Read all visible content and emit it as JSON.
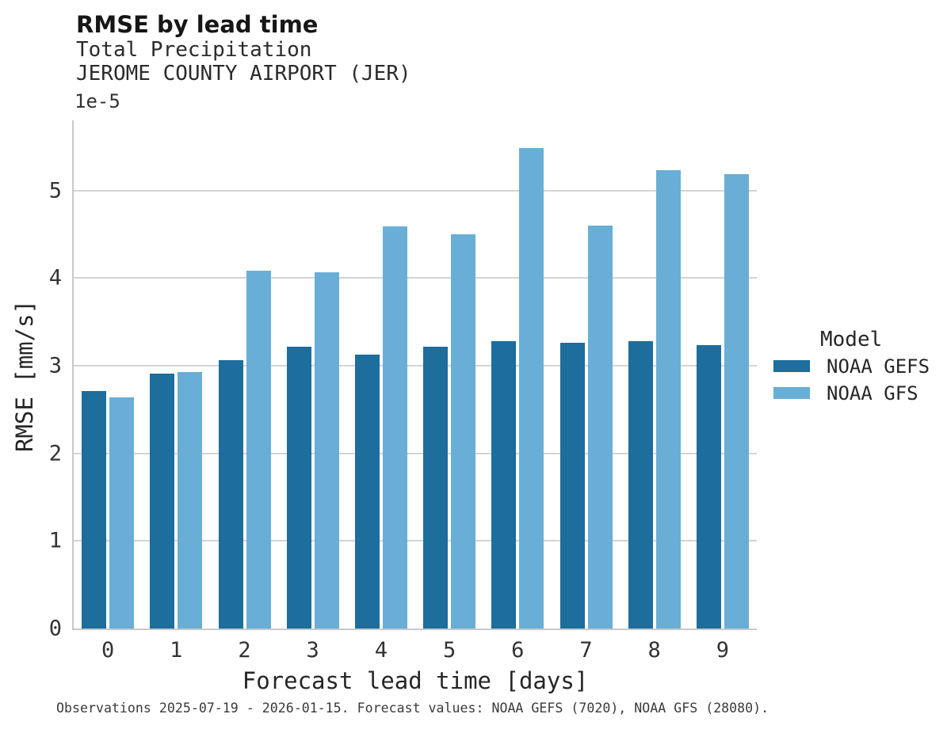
{
  "header": {
    "title": "RMSE by lead time",
    "subtitle1": "Total Precipitation",
    "subtitle2": "JEROME COUNTY AIRPORT (JER)"
  },
  "footer": {
    "note": "Observations 2025-07-19 - 2026-01-15. Forecast values: NOAA GEFS (7020), NOAA GFS (28080)."
  },
  "chart_data": {
    "type": "bar",
    "title": "RMSE by lead time",
    "subtitle": [
      "Total Precipitation",
      "JEROME COUNTY AIRPORT (JER)"
    ],
    "categories": [
      0,
      1,
      2,
      3,
      4,
      5,
      6,
      7,
      8,
      9
    ],
    "series": [
      {
        "name": "NOAA GEFS",
        "color": "#1d6d9d",
        "values": [
          2.71e-05,
          2.91e-05,
          3.06e-05,
          3.22e-05,
          3.13e-05,
          3.22e-05,
          3.28e-05,
          3.26e-05,
          3.28e-05,
          3.23e-05
        ]
      },
      {
        "name": "NOAA GFS",
        "color": "#69aed6",
        "values": [
          2.64e-05,
          2.93e-05,
          4.08e-05,
          4.07e-05,
          4.59e-05,
          4.5e-05,
          5.48e-05,
          4.6e-05,
          5.23e-05,
          5.19e-05
        ]
      }
    ],
    "xlabel": "Forecast lead time [days]",
    "ylabel": "RMSE [mm/s]",
    "y_offset_label": "1e-5",
    "y_ticks": [
      0,
      1,
      2,
      3,
      4,
      5
    ],
    "y_tick_multiplier": 1e-05,
    "ylim": [
      0,
      5.8e-05
    ],
    "grid": "horizontal",
    "legend": {
      "title": "Model",
      "position": "right"
    }
  }
}
